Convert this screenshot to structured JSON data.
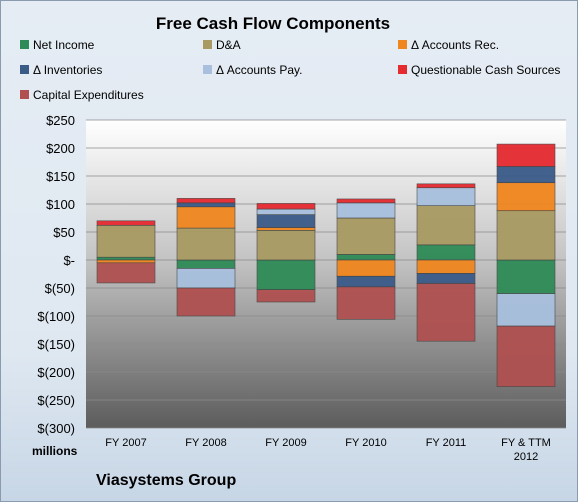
{
  "chart_data": {
    "type": "bar",
    "stacked": true,
    "title": "Free Cash Flow Components",
    "units_label": "millions",
    "company": "Viasystems Group",
    "categories": [
      "FY 2007",
      "FY 2008",
      "FY 2009",
      "FY 2010",
      "FY 2011",
      "FY & TTM 2012"
    ],
    "ylim": [
      -300,
      250
    ],
    "yticks": [
      250,
      200,
      150,
      100,
      50,
      0,
      -50,
      -100,
      -150,
      -200,
      -250,
      -300
    ],
    "ytick_labels": [
      "$250",
      "$200",
      "$150",
      "$100",
      "$50",
      "$-",
      "$(50)",
      "$(100)",
      "$(150)",
      "$(200)",
      "$(250)",
      "$(300)"
    ],
    "legend_position": "top",
    "series": [
      {
        "name": "Net Income",
        "color": "#2e8b57",
        "values": [
          5,
          -15,
          -53,
          10,
          27,
          -60
        ]
      },
      {
        "name": "D&A",
        "color": "#a89a62",
        "values": [
          57,
          57,
          53,
          65,
          70,
          88
        ]
      },
      {
        "name": "Δ Accounts Rec.",
        "color": "#f0861e",
        "values": [
          -5,
          38,
          5,
          -29,
          -24,
          50
        ]
      },
      {
        "name": "Δ Inventories",
        "color": "#3a5a88",
        "values": [
          0,
          7,
          23,
          -19,
          -18,
          29
        ]
      },
      {
        "name": "Δ Accounts Pay.",
        "color": "#a8c0de",
        "values": [
          0,
          -35,
          10,
          27,
          32,
          -58
        ]
      },
      {
        "name": "Questionable Cash Sources",
        "color": "#e52a30",
        "values": [
          8,
          8,
          10,
          7,
          7,
          40
        ]
      },
      {
        "name": "Capital Expenditures",
        "color": "#b05050",
        "values": [
          -36,
          -50,
          -22,
          -58,
          -103,
          -108
        ]
      }
    ]
  }
}
